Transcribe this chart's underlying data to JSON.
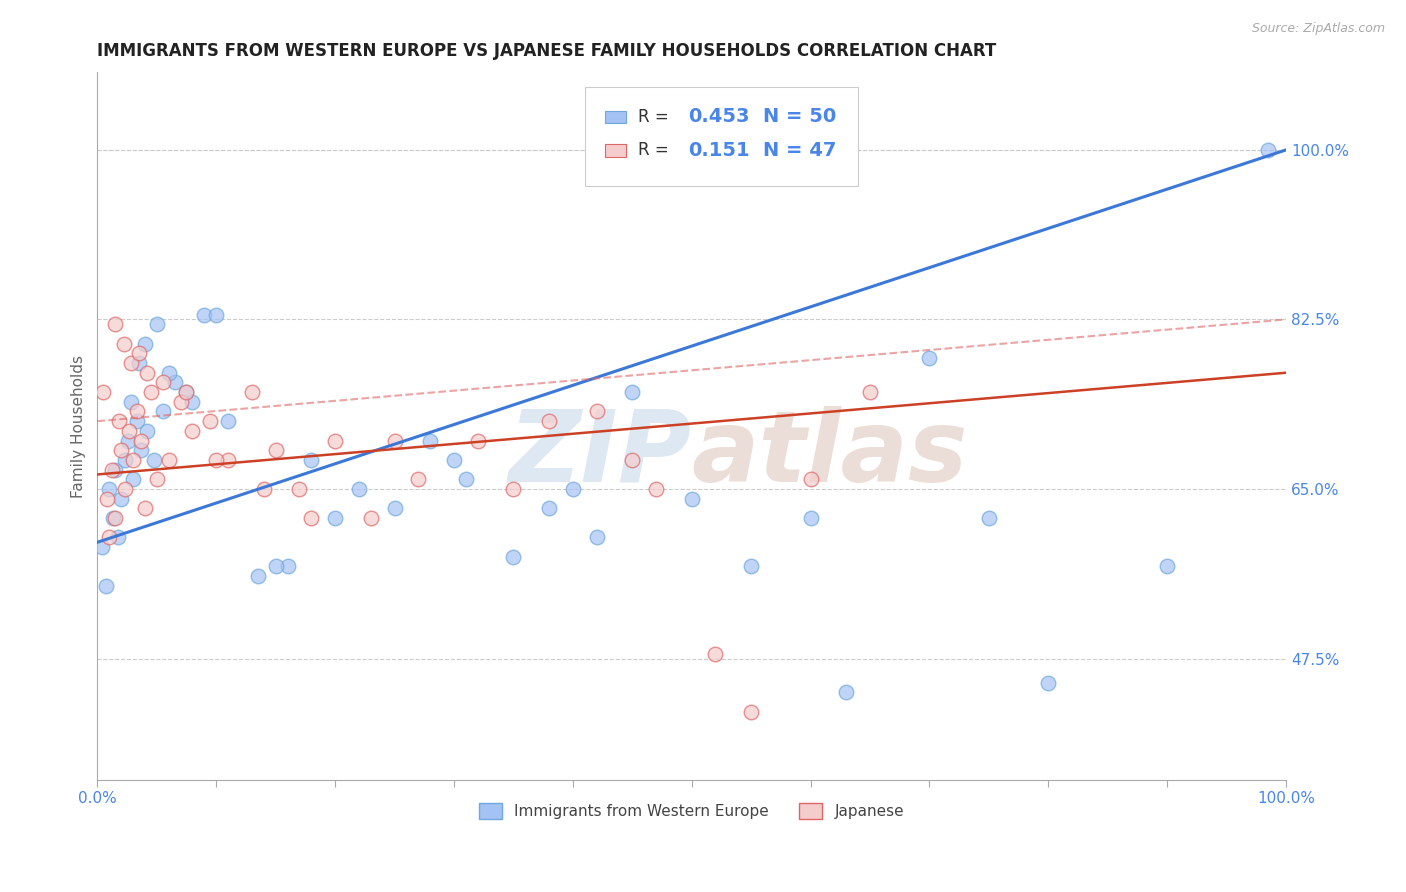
{
  "title": "IMMIGRANTS FROM WESTERN EUROPE VS JAPANESE FAMILY HOUSEHOLDS CORRELATION CHART",
  "source": "Source: ZipAtlas.com",
  "xlabel_blue": "Immigrants from Western Europe",
  "xlabel_pink": "Japanese",
  "ylabel": "Family Households",
  "watermark_zip": "ZIP",
  "watermark_atlas": "atlas",
  "x_min": 0.0,
  "x_max": 100.0,
  "y_min": 35.0,
  "y_max": 108.0,
  "yticks": [
    47.5,
    65.0,
    82.5,
    100.0
  ],
  "xticks": [
    0.0,
    10.0,
    20.0,
    30.0,
    40.0,
    50.0,
    60.0,
    70.0,
    80.0,
    90.0,
    100.0
  ],
  "blue_R": 0.453,
  "blue_N": 50,
  "pink_R": 0.151,
  "pink_N": 47,
  "blue_color": "#a4c2f4",
  "blue_edge_color": "#6fa8dc",
  "pink_color": "#f4cccc",
  "pink_edge_color": "#e06666",
  "blue_line_color": "#3c78d8",
  "pink_line_color": "#cc4125",
  "pink_dash_color": "#e06666",
  "axis_tick_color": "#4a86e8",
  "grid_color": "#cccccc",
  "background_color": "#ffffff",
  "title_fontsize": 12,
  "label_fontsize": 11,
  "tick_fontsize": 11,
  "scatter_size": 110,
  "scatter_alpha": 0.7,
  "line_width": 2.2,
  "blue_scatter_x": [
    0.4,
    0.7,
    1.0,
    1.3,
    1.5,
    1.7,
    2.0,
    2.3,
    2.6,
    3.0,
    3.3,
    3.7,
    4.2,
    4.8,
    5.5,
    6.5,
    7.5,
    9.0,
    11.0,
    13.5,
    16.0,
    18.0,
    22.0,
    25.0,
    28.0,
    31.0,
    35.0,
    38.0,
    40.0,
    42.0,
    45.0,
    50.0,
    55.0,
    63.0,
    70.0,
    80.0,
    90.0,
    98.5,
    2.8,
    3.5,
    4.0,
    5.0,
    6.0,
    8.0,
    10.0,
    15.0,
    20.0,
    30.0,
    60.0,
    75.0
  ],
  "blue_scatter_y": [
    59.0,
    55.0,
    65.0,
    62.0,
    67.0,
    60.0,
    64.0,
    68.0,
    70.0,
    66.0,
    72.0,
    69.0,
    71.0,
    68.0,
    73.0,
    76.0,
    75.0,
    83.0,
    72.0,
    56.0,
    57.0,
    68.0,
    65.0,
    63.0,
    70.0,
    66.0,
    58.0,
    63.0,
    65.0,
    60.0,
    75.0,
    64.0,
    57.0,
    44.0,
    78.5,
    45.0,
    57.0,
    100.0,
    74.0,
    78.0,
    80.0,
    82.0,
    77.0,
    74.0,
    83.0,
    57.0,
    62.0,
    68.0,
    62.0,
    62.0
  ],
  "pink_scatter_x": [
    0.5,
    0.8,
    1.0,
    1.2,
    1.5,
    1.8,
    2.0,
    2.3,
    2.7,
    3.0,
    3.3,
    3.7,
    4.0,
    4.5,
    5.0,
    6.0,
    7.0,
    8.0,
    9.5,
    11.0,
    13.0,
    15.0,
    17.0,
    20.0,
    23.0,
    27.0,
    32.0,
    38.0,
    42.0,
    47.0,
    52.0,
    60.0,
    65.0,
    1.5,
    2.2,
    2.8,
    3.5,
    4.2,
    5.5,
    7.5,
    10.0,
    14.0,
    18.0,
    25.0,
    35.0,
    45.0,
    55.0
  ],
  "pink_scatter_y": [
    75.0,
    64.0,
    60.0,
    67.0,
    62.0,
    72.0,
    69.0,
    65.0,
    71.0,
    68.0,
    73.0,
    70.0,
    63.0,
    75.0,
    66.0,
    68.0,
    74.0,
    71.0,
    72.0,
    68.0,
    75.0,
    69.0,
    65.0,
    70.0,
    62.0,
    66.0,
    70.0,
    72.0,
    73.0,
    65.0,
    48.0,
    66.0,
    75.0,
    82.0,
    80.0,
    78.0,
    79.0,
    77.0,
    76.0,
    75.0,
    68.0,
    65.0,
    62.0,
    70.0,
    65.0,
    68.0,
    42.0
  ],
  "blue_line_x0": 0.0,
  "blue_line_x1": 100.0,
  "blue_line_y0": 59.5,
  "blue_line_y1": 100.0,
  "pink_line_x0": 0.0,
  "pink_line_x1": 100.0,
  "pink_line_y0": 66.5,
  "pink_line_y1": 77.0,
  "pink_dash_x0": 0.0,
  "pink_dash_x1": 100.0,
  "pink_dash_y0": 72.0,
  "pink_dash_y1": 82.5
}
